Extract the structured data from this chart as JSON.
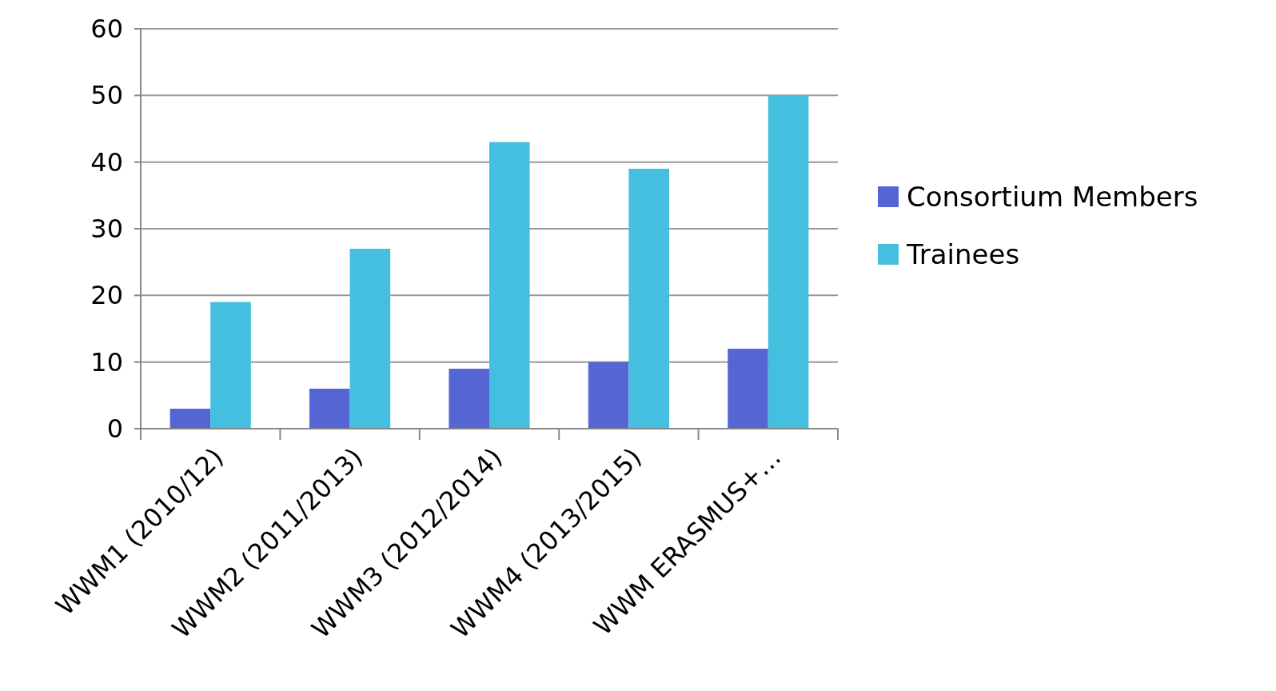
{
  "chart_data": {
    "type": "bar",
    "categories": [
      "WWM1 (2010/12)",
      "WWM2 (2011/2013)",
      "WWM3 (2012/2014)",
      "WWM4 (2013/2015)",
      "WWM ERASMUS+…"
    ],
    "series": [
      {
        "name": "Consortium Members",
        "color": "#5566d4",
        "values": [
          3,
          6,
          9,
          10,
          12
        ]
      },
      {
        "name": "Trainees",
        "color": "#45bfe0",
        "values": [
          19,
          27,
          43,
          39,
          50
        ]
      }
    ],
    "ylim": [
      0,
      60
    ],
    "yticks": [
      0,
      10,
      20,
      30,
      40,
      50,
      60
    ],
    "grid": "y",
    "legend": "right"
  }
}
